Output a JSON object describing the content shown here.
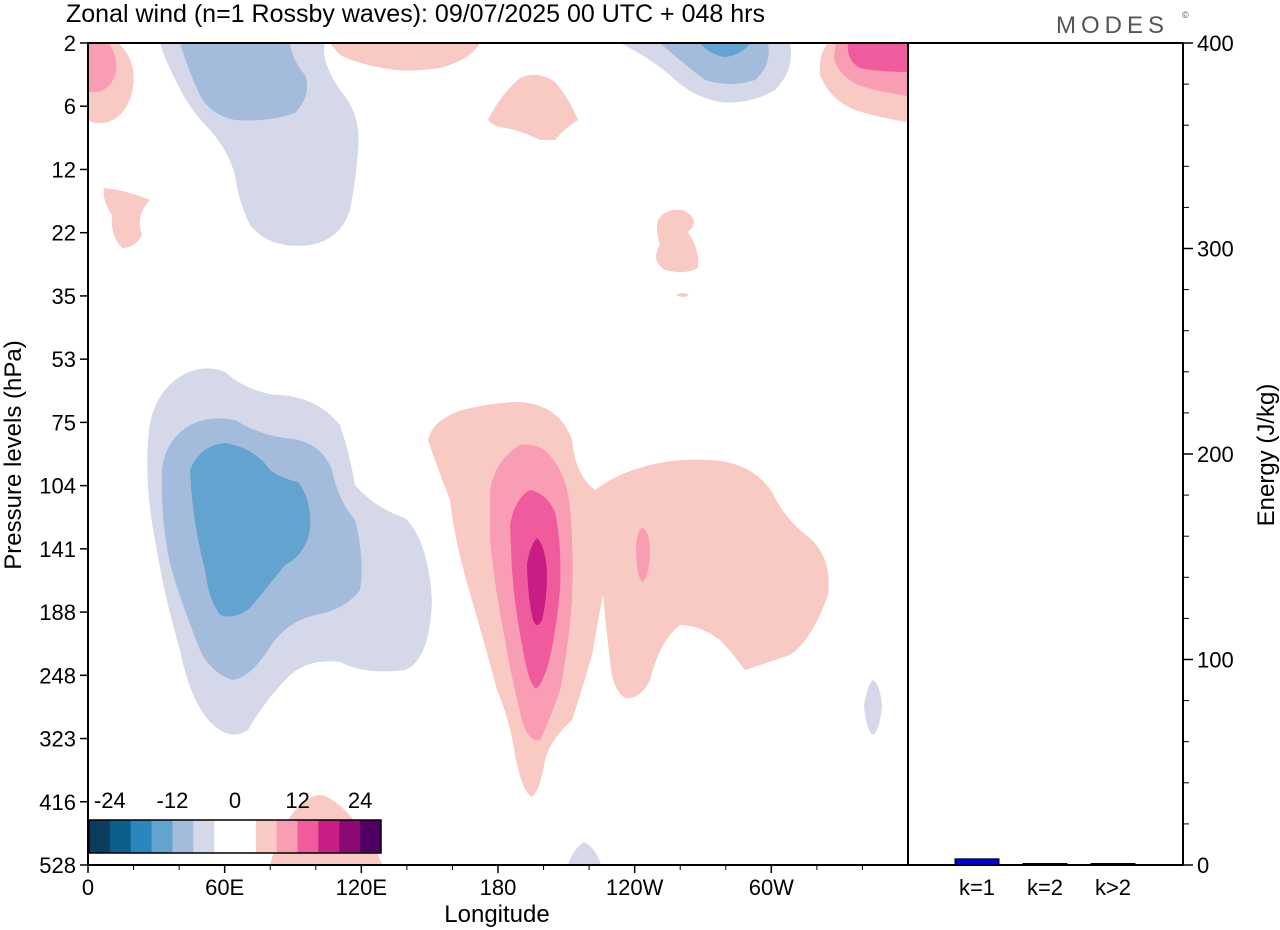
{
  "header": {
    "title": "Zonal wind (n=1 Rossby waves):  09/07/2025  00 UTC  + 048 hrs",
    "logo": "MODES",
    "logo_mark": "©"
  },
  "chart_data": [
    {
      "type": "heatmap",
      "xlabel": "Longitude",
      "ylabel": "Pressure levels (hPa)",
      "x_ticks": [
        "0",
        "60E",
        "120E",
        "180",
        "120W",
        "60W"
      ],
      "y_ticks": [
        "2",
        "6",
        "12",
        "22",
        "35",
        "53",
        "75",
        "104",
        "141",
        "188",
        "248",
        "323",
        "416",
        "528"
      ],
      "colorbar": {
        "labels": [
          "-24",
          "-12",
          "0",
          "12",
          "24"
        ],
        "colors": [
          "#0b3d5e",
          "#0a5f8c",
          "#2b86be",
          "#62a3cf",
          "#a3bcdc",
          "#d5d8e8",
          "#ffffff",
          "#ffffff",
          "#f9c9c4",
          "#f89db3",
          "#ef5b9c",
          "#c81d84",
          "#8c0872",
          "#500064"
        ]
      },
      "contours": [
        {
          "value_range": [
            -6,
            -3
          ],
          "color": "#d5d8e8",
          "location": "60E–110E, 53–416 hPa"
        },
        {
          "value_range": [
            -9,
            -6
          ],
          "color": "#a3bcdc",
          "location": "30E–95E, 75–248 hPa"
        },
        {
          "value_range": [
            -12,
            -9
          ],
          "color": "#62a3cf",
          "location": "45E–85E, 104–188 hPa"
        },
        {
          "value_range": [
            -6,
            -3
          ],
          "color": "#d5d8e8",
          "location": "30E–105E, 2–22 hPa"
        },
        {
          "value_range": [
            -9,
            -6
          ],
          "color": "#a3bcdc",
          "location": "45E–85E, 2–6 hPa"
        },
        {
          "value_range": [
            3,
            6
          ],
          "color": "#f9c9c4",
          "location": "150E–330E, 75–416 hPa"
        },
        {
          "value_range": [
            6,
            9
          ],
          "color": "#f89db3",
          "location": "175E–200E, 104–323 hPa"
        },
        {
          "value_range": [
            9,
            12
          ],
          "color": "#ef5b9c",
          "location": "180E–195E, 104–248 hPa"
        },
        {
          "value_range": [
            12,
            15
          ],
          "color": "#c81d84",
          "location": "188E–193E, 141–188 hPa"
        },
        {
          "value_range": [
            3,
            15
          ],
          "color": "#ef5b9c",
          "location": "320E–360E, 2–6 hPa"
        }
      ]
    },
    {
      "type": "bar",
      "ylabel": "Energy (J/kg)",
      "categories": [
        "k=1",
        "k=2",
        "k>2"
      ],
      "values": [
        3,
        0.3,
        0.6
      ],
      "ylim": [
        0,
        400
      ],
      "y_ticks": [
        "0",
        "100",
        "200",
        "300",
        "400"
      ],
      "colors": [
        "#0000dd",
        "#000000",
        "#000000"
      ]
    }
  ]
}
